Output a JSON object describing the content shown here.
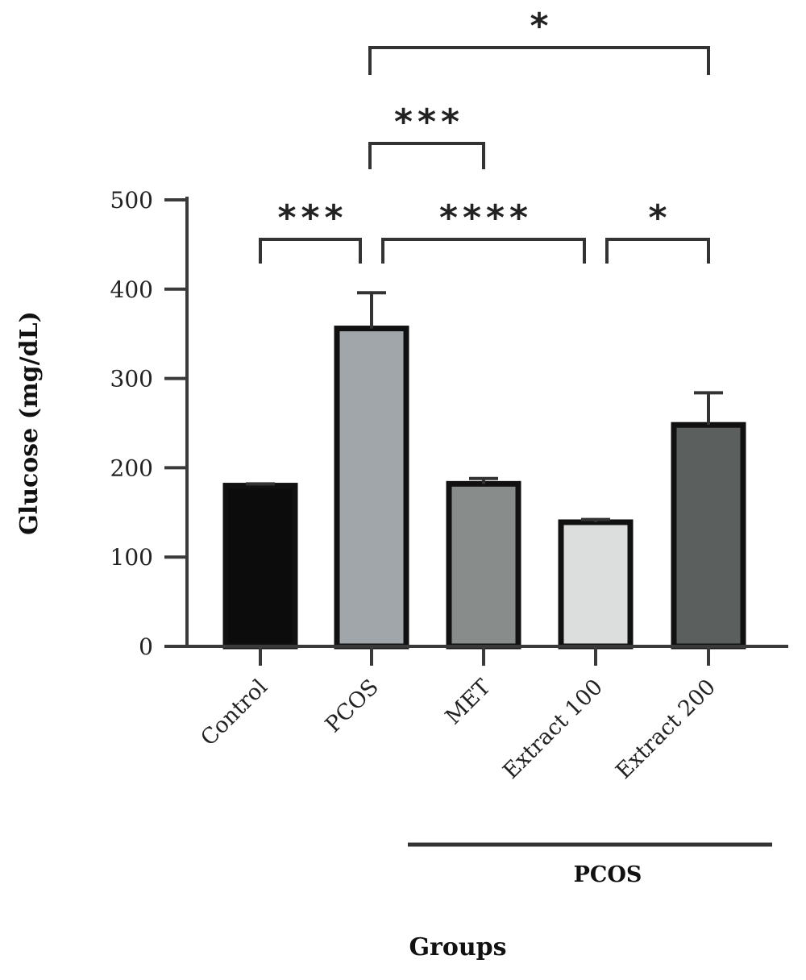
{
  "chart_data": {
    "type": "bar",
    "categories": [
      "Control",
      "PCOS",
      "MET",
      "Extract 100",
      "Extract 200"
    ],
    "values": [
      180,
      356,
      182,
      139,
      248
    ],
    "errors": [
      2,
      40,
      6,
      3,
      36
    ],
    "bar_colors": [
      "#0c0c0c",
      "#a1a6aa",
      "#888c8a",
      "#dcdedd",
      "#5b605e"
    ],
    "ylabel": "Glucose (mg/dL)",
    "xlabel": "Groups",
    "ylim": [
      0,
      500
    ],
    "yticks": [
      0,
      100,
      200,
      300,
      400,
      500
    ],
    "group_bracket": {
      "label": "PCOS",
      "from": "MET",
      "to": "Extract 200"
    },
    "significance": [
      {
        "from": "Control",
        "to": "PCOS",
        "label": "***",
        "level": 1
      },
      {
        "from": "PCOS",
        "to": "Extract 100",
        "label": "****",
        "level": 1
      },
      {
        "from": "Extract 100",
        "to": "Extract 200",
        "label": "*",
        "level": 1
      },
      {
        "from": "PCOS",
        "to": "MET",
        "label": "***",
        "level": 2
      },
      {
        "from": "PCOS",
        "to": "Extract 200",
        "label": "*",
        "level": 3
      }
    ]
  }
}
